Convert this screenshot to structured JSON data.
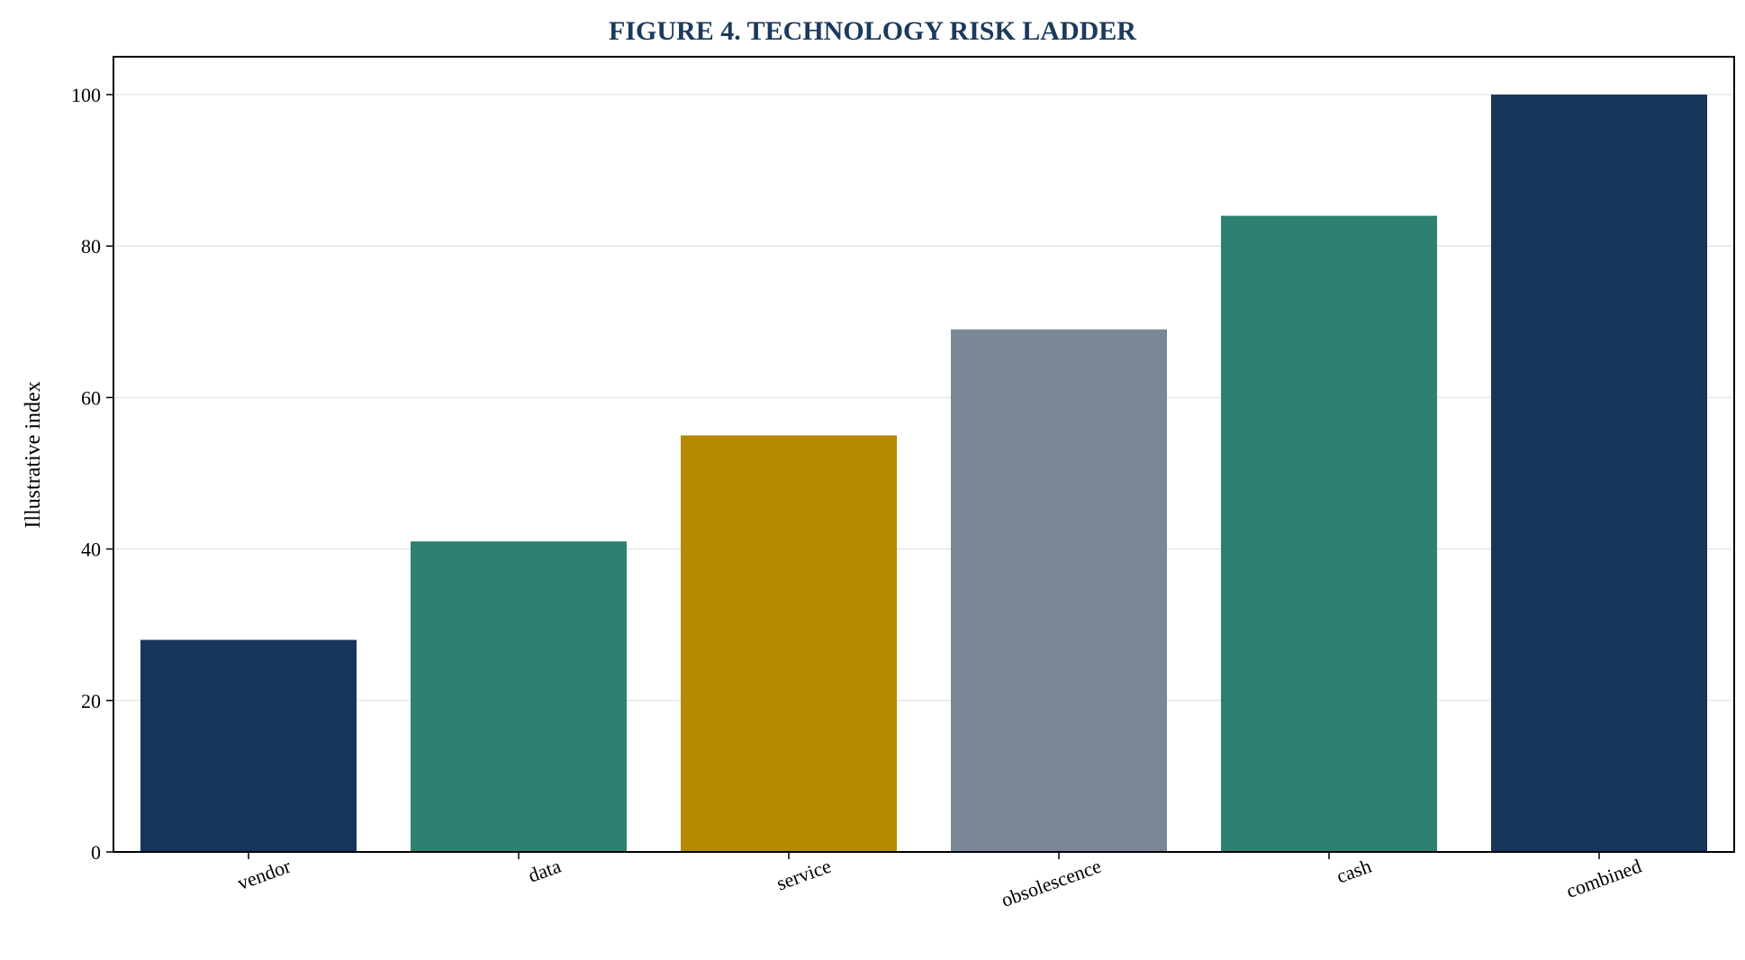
{
  "chart_data": {
    "type": "bar",
    "title": "FIGURE 4. TECHNOLOGY RISK LADDER",
    "xlabel": "",
    "ylabel": "Illustrative index",
    "categories": [
      "vendor",
      "data",
      "service",
      "obsolescence",
      "cash",
      "combined"
    ],
    "values": [
      28,
      41,
      55,
      69,
      84,
      100
    ],
    "colors": [
      "#18365c",
      "#2e8070",
      "#b38a00",
      "#7a8796",
      "#2e8070",
      "#18365c"
    ],
    "ylim": [
      0,
      105
    ],
    "yticks": [
      0,
      20,
      40,
      60,
      80,
      100
    ],
    "grid": "horizontal",
    "title_color": "#1b3a5c"
  }
}
